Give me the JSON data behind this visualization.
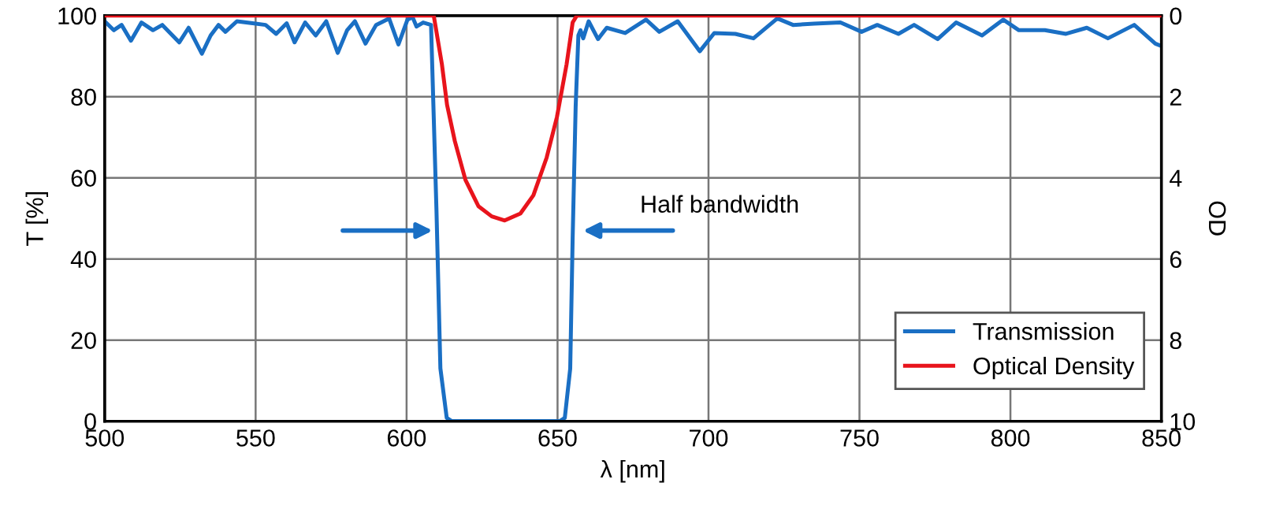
{
  "chart_data": {
    "type": "line",
    "xlabel": "λ [nm]",
    "ylabel": "T [%]",
    "y2label": "OD",
    "xlim": [
      500,
      850
    ],
    "xticks": [
      500,
      550,
      600,
      650,
      700,
      750,
      800,
      850
    ],
    "ylim": [
      0,
      100
    ],
    "yticks": [
      0,
      20,
      40,
      60,
      80,
      100
    ],
    "y2lim": [
      10,
      0
    ],
    "y2ticks": [
      0,
      2,
      4,
      6,
      8,
      10
    ],
    "grid": true,
    "legend": "bottom right",
    "annotations": [
      {
        "text": "Half bandwidth",
        "x": 657,
        "y": 47
      }
    ],
    "series": [
      {
        "name": "Transmission",
        "color": "#1a6fc4",
        "x": [
          500,
          503,
          505.6,
          508.7,
          512.2,
          516,
          519.1,
          524.7,
          527.8,
          532.2,
          535.1,
          537.7,
          540,
          543.8,
          549,
          553.3,
          556.8,
          560.3,
          562.9,
          566.4,
          569.9,
          573.4,
          577.2,
          580.3,
          582.9,
          586.4,
          589.9,
          594.2,
          597.3,
          600.3,
          602,
          603.3,
          605.5,
          608.1,
          609.9,
          611.2,
          613.3,
          615,
          650.7,
          652.4,
          654.2,
          655,
          656,
          656.9,
          657.6,
          658.5,
          660.3,
          663.4,
          666.3,
          672.4,
          679.3,
          683.7,
          689.8,
          697.1,
          701.9,
          708.9,
          714.9,
          722.8,
          728,
          735,
          743.7,
          750.7,
          755.9,
          762.9,
          768.1,
          775.9,
          782,
          790.6,
          797.6,
          802.8,
          811.4,
          818.4,
          825.3,
          832.3,
          841,
          848,
          850
        ],
        "values": [
          98.6,
          96.4,
          97.7,
          93.8,
          98.3,
          96.4,
          97.7,
          93.4,
          97,
          90.6,
          95.1,
          97.7,
          96,
          98.6,
          98.1,
          97.7,
          95.5,
          98.1,
          93.4,
          98.3,
          95.1,
          98.6,
          90.8,
          96.4,
          98.6,
          93.1,
          97.7,
          99.3,
          92.9,
          99,
          99.6,
          97.3,
          98.3,
          97.7,
          52,
          13,
          0.8,
          0,
          0,
          0.8,
          13,
          45,
          77.6,
          95.1,
          96.4,
          94.4,
          98.6,
          94.2,
          97,
          95.7,
          99,
          96,
          98.6,
          91.2,
          95.7,
          95.5,
          94.4,
          99.3,
          97.7,
          98,
          98.3,
          96,
          97.7,
          95.5,
          97.7,
          94.2,
          98.3,
          95.1,
          99,
          96.4,
          96.4,
          95.5,
          97,
          94.4,
          97.7,
          93.1,
          92.5
        ]
      },
      {
        "name": "Optical Density",
        "color": "#e8141c",
        "axis": "y2",
        "x": [
          500,
          609,
          611.7,
          613.4,
          616,
          619.5,
          623.8,
          628.2,
          632.5,
          637.7,
          642,
          646.4,
          649.8,
          653,
          655,
          656.4,
          850
        ],
        "values": [
          0,
          0,
          1.2,
          2.2,
          3.1,
          4.05,
          4.7,
          4.95,
          5.05,
          4.88,
          4.43,
          3.5,
          2.5,
          1.2,
          0.17,
          0,
          0
        ]
      }
    ]
  }
}
